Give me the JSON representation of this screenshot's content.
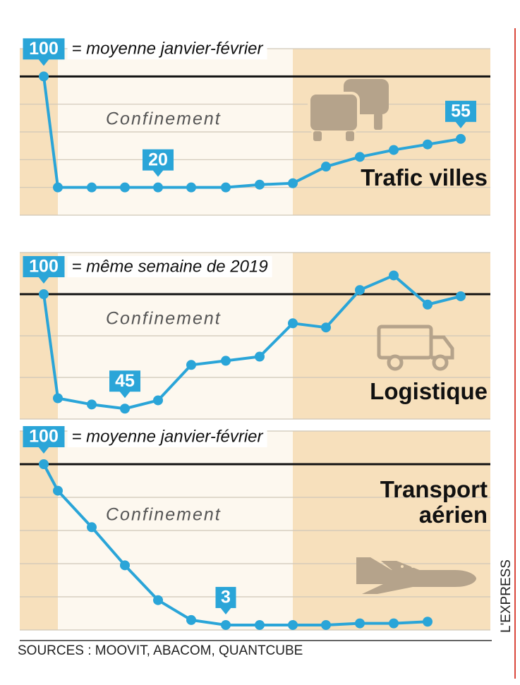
{
  "chart_data": [
    {
      "type": "line",
      "title": "Trafic villes",
      "subtitle": "= moyenne janvier-février",
      "annotation": "Confinement",
      "ylim": [
        0,
        120
      ],
      "yticks": [
        0,
        20,
        40,
        60,
        80,
        100,
        120
      ],
      "grid": true,
      "reference_line": 100,
      "color": "#2aa5d8",
      "values": [
        100,
        20,
        20,
        20,
        20,
        20,
        20,
        22,
        23,
        35,
        42,
        47,
        51,
        55
      ],
      "value_labels": [
        "100",
        null,
        null,
        null,
        "20",
        null,
        null,
        null,
        null,
        null,
        null,
        null,
        null,
        "55"
      ]
    },
    {
      "type": "line",
      "title": "Logistique",
      "subtitle": "= même semaine de 2019",
      "annotation": "Confinement",
      "ylim": [
        40,
        120
      ],
      "yticks": [
        40,
        60,
        80,
        100,
        120
      ],
      "grid": true,
      "reference_line": 100,
      "color": "#2aa5d8",
      "values": [
        100,
        50,
        47,
        45,
        49,
        66,
        68,
        70,
        86,
        84,
        102,
        109,
        95,
        99
      ],
      "value_labels": [
        "100",
        null,
        null,
        "45",
        null,
        null,
        null,
        null,
        null,
        null,
        null,
        null,
        null,
        null
      ]
    },
    {
      "type": "line",
      "title": "Transport aérien",
      "subtitle": "= moyenne janvier-février",
      "annotation": "Confinement",
      "ylim": [
        0,
        120
      ],
      "yticks": [
        0,
        20,
        40,
        60,
        80,
        100,
        120
      ],
      "grid": true,
      "reference_line": 100,
      "color": "#2aa5d8",
      "values": [
        100,
        84,
        62,
        39,
        18,
        6,
        3,
        3,
        3,
        3,
        4,
        4,
        5
      ],
      "value_labels": [
        "100",
        null,
        null,
        null,
        null,
        null,
        "3",
        null,
        null,
        null,
        null,
        null,
        null
      ]
    }
  ],
  "source": "SOURCES : MOOVIT, ABACOM, QUANTCUBE",
  "brand": "L'EXPRESS"
}
